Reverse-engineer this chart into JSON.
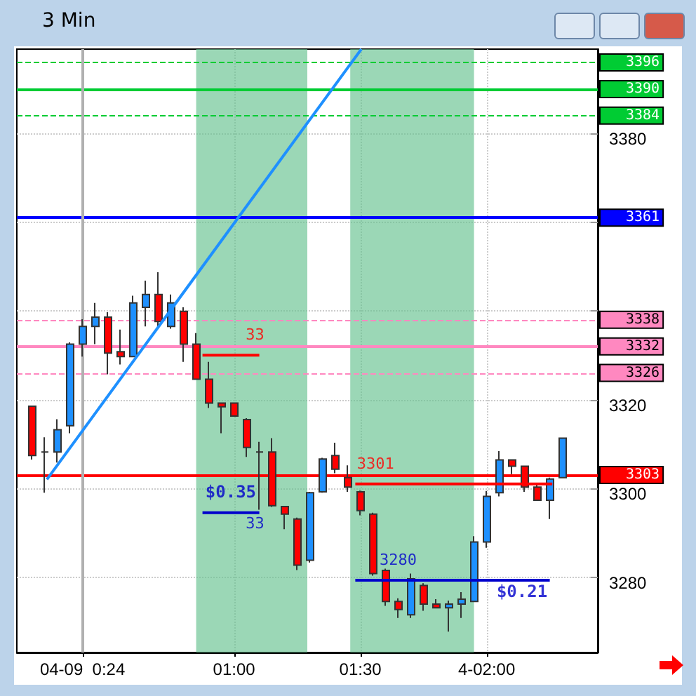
{
  "chart_data": {
    "type": "candlestick",
    "title": "3 Min",
    "x": [
      0.2,
      0.25,
      0.3,
      0.35,
      0.4,
      0.45,
      0.5,
      0.55,
      0.6,
      0.65,
      0.7,
      0.75,
      0.8,
      0.85,
      0.9,
      0.95,
      1.0,
      1.05,
      1.1,
      1.15,
      1.2,
      1.25,
      1.3,
      1.35,
      1.4,
      1.45,
      1.5,
      1.55,
      1.6,
      1.65,
      1.7,
      1.75,
      1.8,
      1.85,
      1.9,
      1.95,
      2.0,
      2.05,
      2.1,
      2.15,
      2.2,
      2.25,
      2.3
    ],
    "ohlc": [
      [
        3318.5,
        3318.5,
        3306.5,
        3307.4
      ],
      [
        3308.2,
        3311.5,
        3299,
        3308.2
      ],
      [
        3308.2,
        3315.6,
        3305.8,
        3313.2
      ],
      [
        3314.1,
        3332.9,
        3312.4,
        3332.5
      ],
      [
        3332.5,
        3338.1,
        3329.7,
        3336.5
      ],
      [
        3336.5,
        3341.8,
        3332.5,
        3338.6
      ],
      [
        3338.6,
        3339.7,
        3325.7,
        3330.5
      ],
      [
        3330.8,
        3335.8,
        3327.9,
        3329.7
      ],
      [
        3329.7,
        3343.4,
        3329.7,
        3341.8
      ],
      [
        3340.8,
        3346.8,
        3336.5,
        3343.7
      ],
      [
        3343.7,
        3348.7,
        3336.5,
        3337.6
      ],
      [
        3336.5,
        3343.7,
        3336.0,
        3341.8
      ],
      [
        3339.9,
        3340.8,
        3328.5,
        3332.5
      ],
      [
        3332.5,
        3335.0,
        3324.6,
        3324.6
      ],
      [
        3324.6,
        3328.5,
        3318.1,
        3319.2
      ],
      [
        3319.2,
        3319.2,
        3312.4,
        3318.4
      ],
      [
        3319.2,
        3319.2,
        3316.3,
        3316.3
      ],
      [
        3315.5,
        3315.8,
        3307.1,
        3309.2
      ],
      [
        3308.2,
        3310.5,
        3295.2,
        3308.2
      ],
      [
        3308.2,
        3311.3,
        3295.8,
        3296.1
      ],
      [
        3295.9,
        3295.9,
        3290.8,
        3294.2
      ],
      [
        3293.1,
        3293.4,
        3281.6,
        3282.7
      ],
      [
        3283.8,
        3299.2,
        3283.3,
        3299.0
      ],
      [
        3299.2,
        3306.9,
        3299.0,
        3306.6
      ],
      [
        3307.4,
        3310.3,
        3303.4,
        3304.3
      ],
      [
        3302.4,
        3305.2,
        3299.2,
        3300.3
      ],
      [
        3299.2,
        3299.5,
        3293.9,
        3295.0
      ],
      [
        3294.2,
        3294.5,
        3280.3,
        3280.8
      ],
      [
        3281.5,
        3281.9,
        3273.5,
        3274.5
      ],
      [
        3274.5,
        3275.2,
        3270.8,
        3272.7
      ],
      [
        3271.5,
        3280.8,
        3270.8,
        3279.6
      ],
      [
        3278.1,
        3278.6,
        3272.4,
        3273.9
      ],
      [
        3273.9,
        3275.0,
        3273.1,
        3273.1
      ],
      [
        3273.1,
        3274.7,
        3267.7,
        3273.9
      ],
      [
        3273.9,
        3276.6,
        3270.8,
        3275.0
      ],
      [
        3274.5,
        3289.2,
        3274.5,
        3287.9
      ],
      [
        3287.9,
        3299.4,
        3286.6,
        3298.2
      ],
      [
        3299.0,
        3308.4,
        3298.2,
        3306.4
      ],
      [
        3306.4,
        3306.4,
        3303.2,
        3305.0
      ],
      [
        3305.0,
        3305.0,
        3299.2,
        3300.3
      ],
      [
        3300.3,
        3300.9,
        3297.3,
        3297.3
      ],
      [
        3297.3,
        3302.4,
        3293.1,
        3302.1
      ],
      [
        3302.4,
        3311.3,
        3302.4,
        3311.3
      ]
    ],
    "colors": [
      "#ff0000",
      "#333333",
      "#1e90ff",
      "#1e90ff",
      "#1e90ff",
      "#1e90ff",
      "#ff0000",
      "#ff0000",
      "#1e90ff",
      "#1e90ff",
      "#ff0000",
      "#1e90ff",
      "#ff0000",
      "#ff0000",
      "#ff0000",
      "#ff0000",
      "#ff0000",
      "#ff0000",
      "#333333",
      "#ff0000",
      "#ff0000",
      "#ff0000",
      "#1e90ff",
      "#1e90ff",
      "#ff0000",
      "#ff0000",
      "#ff0000",
      "#ff0000",
      "#ff0000",
      "#ff0000",
      "#1e90ff",
      "#ff0000",
      "#ff0000",
      "#1e90ff",
      "#1e90ff",
      "#1e90ff",
      "#1e90ff",
      "#1e90ff",
      "#ff0000",
      "#ff0000",
      "#ff0000",
      "#1e90ff",
      "#1e90ff"
    ],
    "series": [
      {
        "type": "line",
        "color": "#1e90ff",
        "x": [
          0.259,
          1.504
        ],
        "values": [
          3302,
          3399
        ]
      },
      {
        "type": "line",
        "color": "#ff0000",
        "x": [
          0.875,
          1.1
        ],
        "values": [
          3330,
          3330
        ]
      },
      {
        "type": "line",
        "color": "#0000cc",
        "x": [
          0.875,
          1.1
        ],
        "values": [
          3294.5,
          3294.5
        ]
      },
      {
        "type": "line",
        "color": "#ff0000",
        "x": [
          1.48,
          2.26
        ],
        "values": [
          3301,
          3301
        ]
      },
      {
        "type": "line",
        "color": "#0000cc",
        "x": [
          1.48,
          2.25
        ],
        "values": [
          3279.3,
          3279.3
        ]
      }
    ],
    "annotations": [
      {
        "text": "33",
        "x": 1.083,
        "y": 3330
      },
      {
        "text": "$0.35",
        "x": 0.987,
        "y": 3294.5
      },
      {
        "text": "33",
        "x": 1.083,
        "y": 3294.5
      },
      {
        "text": "3301",
        "x": 1.56,
        "y": 3301
      },
      {
        "text": "3280",
        "x": 1.65,
        "y": 3279.3
      },
      {
        "text": "$0.21",
        "x": 2.14,
        "y": 3279.3
      }
    ],
    "ref_lines": [
      {
        "axis": "y",
        "value": 3396,
        "label": "3396",
        "color": "#00cc33",
        "line_style": "dashed"
      },
      {
        "axis": "y",
        "value": 3390,
        "label": "3390",
        "color": "#00cc33",
        "line_style": "solid"
      },
      {
        "axis": "y",
        "value": 3384,
        "label": "3384",
        "color": "#00cc33",
        "line_style": "dashed"
      },
      {
        "axis": "y",
        "value": 3361,
        "label": "3361",
        "color": "#0000ff",
        "line_style": "solid"
      },
      {
        "axis": "y",
        "value": 3338,
        "label": "3338",
        "color": "#ff88c0",
        "line_style": "dashed"
      },
      {
        "axis": "y",
        "value": 3332,
        "label": "3332",
        "color": "#ff88c0",
        "line_style": "solid"
      },
      {
        "axis": "y",
        "value": 3326,
        "label": "3326",
        "color": "#ff88c0",
        "line_style": "dashed"
      },
      {
        "axis": "y",
        "value": 3303,
        "label": "3303",
        "color": "#ff0000",
        "line_style": "solid"
      },
      {
        "axis": "x",
        "value": 0.4,
        "color": "#b0b0b0",
        "line_style": "solid"
      }
    ],
    "bands": [
      {
        "axis": "x",
        "from": 0.85,
        "to": 1.29,
        "color": "#66c28f"
      },
      {
        "axis": "x",
        "from": 1.46,
        "to": 1.95,
        "color": "#66c28f"
      }
    ],
    "xlim": [
      0.14,
      2.44
    ],
    "xticks": [
      {
        "value": 0.4,
        "label": "04-09  0:24"
      },
      {
        "value": 1,
        "label": "01:00"
      },
      {
        "value": 1.5,
        "label": "01:30"
      },
      {
        "value": 2,
        "label": "4-02:00"
      }
    ],
    "ylim": [
      3263,
      3399
    ],
    "yticks": [
      3280,
      3300,
      3320,
      {
        "value": 3340,
        "label": null
      },
      {
        "value": 3360,
        "label": null
      },
      3380
    ],
    "grid": true
  }
}
